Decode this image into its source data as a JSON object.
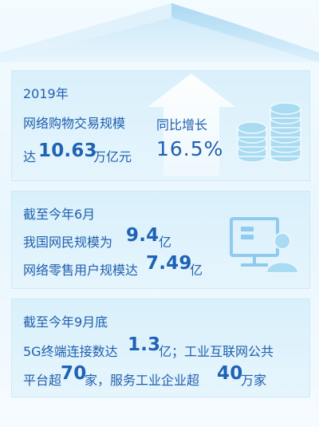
{
  "section1": {
    "year": "2019年",
    "line1": "网络购物交易规模",
    "amount_prefix": "达",
    "amount": "10.63",
    "amount_unit": "万亿元",
    "growth_label": "同比增长",
    "growth_value": "16.5%"
  },
  "section2": {
    "date": "截至今年6月",
    "netizen_prefix": "我国网民规模为",
    "netizen_value": "9.4",
    "netizen_unit": "亿",
    "shoppers_prefix": "网络零售用户规模达",
    "shoppers_value": "7.49",
    "shoppers_unit": "亿"
  },
  "section3": {
    "date": "截至今年9月底",
    "line1_prefix": "5G终端连接数达",
    "line1_value": "1.3",
    "line1_suffix": "亿；工业互联网公共",
    "line2_prefix": "平台超",
    "line2_value": "70",
    "line2_mid": "家，服务工业企业超",
    "line2_value2": "40",
    "line2_suffix": "万家"
  },
  "colors": {
    "text": "#1f5fae",
    "panel": "#d9f0fb",
    "icon": "#a9dbf2"
  },
  "icons": {
    "section1": "coin-stack-icon",
    "section1_arrow": "up-arrow-icon",
    "section2": "computer-user-icon"
  }
}
